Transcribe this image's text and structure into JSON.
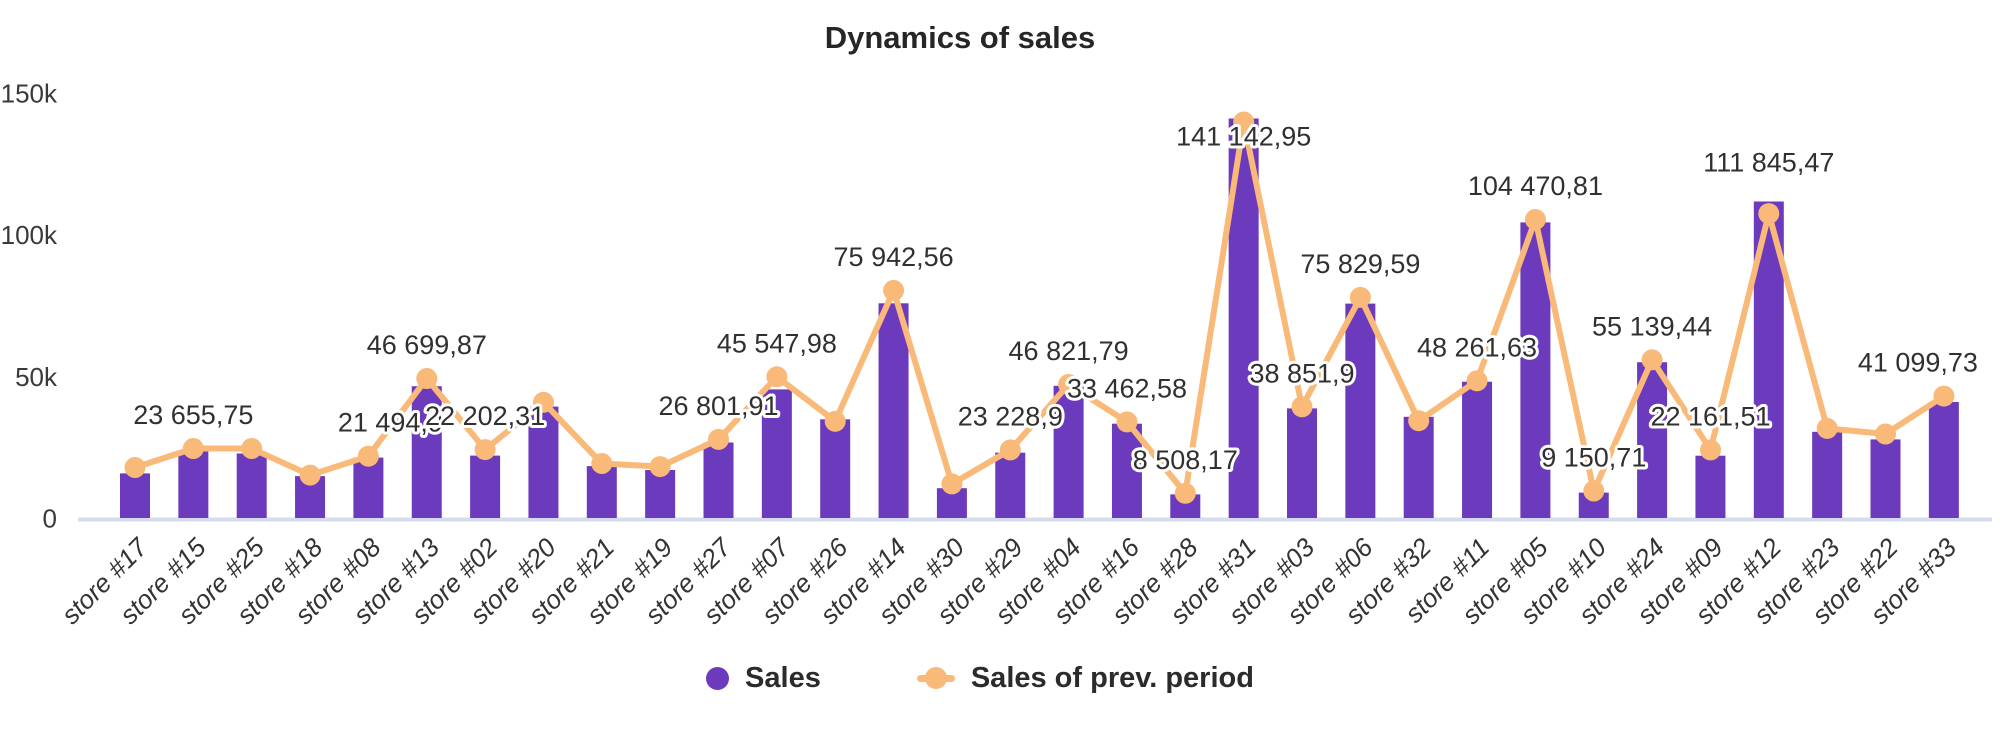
{
  "title": "Dynamics of sales",
  "legend": {
    "sales_label": "Sales",
    "prev_label": "Sales of prev. period"
  },
  "colors": {
    "bar": "#6c3abc",
    "line": "#f9b978",
    "title_text": "#262626",
    "label_text": "#303030",
    "axis_text": "#3a3a3a",
    "baseline": "#d5dced",
    "halo": "#ffffff"
  },
  "y_axis_ticks": [
    {
      "label": "150k",
      "value": 150000
    },
    {
      "label": "100k",
      "value": 100000
    },
    {
      "label": "50k",
      "value": 50000
    },
    {
      "label": "0",
      "value": 0
    }
  ],
  "chart_data": {
    "type": "bar",
    "title": "Dynamics of sales",
    "xlabel": "",
    "ylabel": "",
    "ylim": [
      0,
      150000
    ],
    "grid": false,
    "legend_position": "bottom",
    "y_tick_labels": [
      "150k",
      "100k",
      "50k",
      "0"
    ],
    "categories": [
      "store #17",
      "store #15",
      "store #25",
      "store #18",
      "store #08",
      "store #13",
      "store #02",
      "store #20",
      "store #21",
      "store #19",
      "store #27",
      "store #07",
      "store #26",
      "store #14",
      "store #30",
      "store #29",
      "store #04",
      "store #16",
      "store #28",
      "store #31",
      "store #03",
      "store #06",
      "store #32",
      "store #11",
      "store #05",
      "store #10",
      "store #24",
      "store #09",
      "store #12",
      "store #23",
      "store #22",
      "store #33"
    ],
    "series": [
      {
        "name": "Sales",
        "type": "column",
        "color": "#6c3abc",
        "values": [
          15900,
          23655.75,
          22950,
          14950,
          21494.9,
          46699.87,
          22202.31,
          39500,
          18500,
          17100,
          26801.91,
          45547.98,
          35000,
          75942.56,
          10700,
          23228.9,
          46821.79,
          33462.58,
          8508.17,
          141142.95,
          38851.9,
          75829.59,
          35900,
          48261.63,
          104470.81,
          9150.71,
          55139.44,
          22161.51,
          111845.47,
          30600,
          27900,
          41099.73
        ]
      },
      {
        "name": "Sales of prev. period",
        "type": "line",
        "color": "#f9b978",
        "values": [
          18000,
          24700,
          24700,
          15300,
          22000,
          49400,
          24300,
          41000,
          19400,
          18300,
          27900,
          50000,
          34300,
          80500,
          12200,
          24200,
          47300,
          34100,
          8900,
          139900,
          39400,
          78000,
          34500,
          48600,
          105500,
          9700,
          56000,
          24200,
          107600,
          31800,
          29800,
          43200
        ]
      }
    ],
    "point_labels": {
      "series": "Sales",
      "values": [
        null,
        "23 655,75",
        null,
        null,
        "21 494,9",
        "46 699,87",
        "22 202,31",
        null,
        null,
        null,
        "26 801,91",
        "45 547,98",
        null,
        "75 942,56",
        null,
        "23 228,9",
        "46 821,79",
        "33 462,58",
        "8 508,17",
        "141 142,95",
        "38 851,9",
        "75 829,59",
        null,
        "48 261,63",
        "104 470,81",
        "9 150,71",
        "55 139,44",
        "22 161,51",
        "111 845,47",
        null,
        null,
        "41 099,73"
      ]
    }
  }
}
